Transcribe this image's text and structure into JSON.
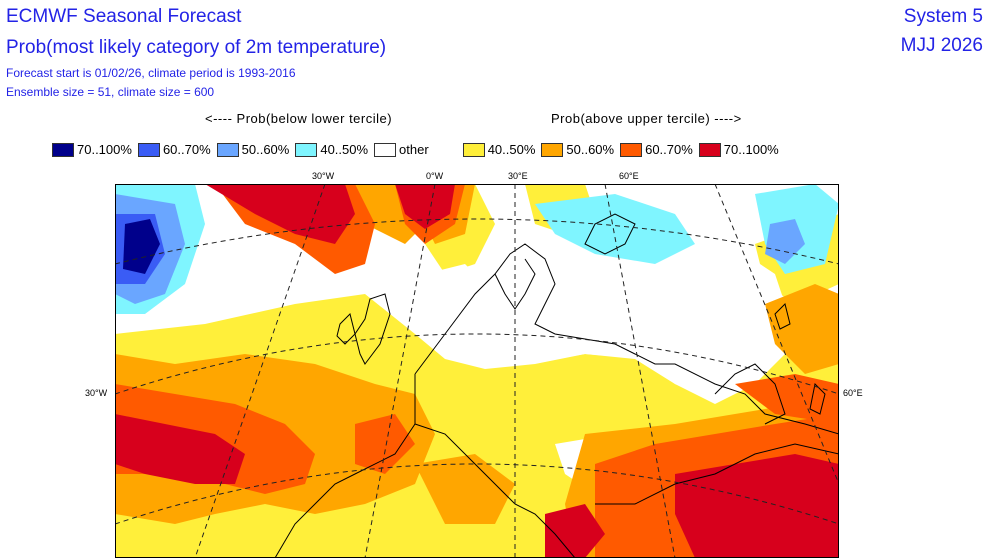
{
  "title": {
    "line1": "ECMWF Seasonal Forecast",
    "line2": "Prob(most likely category of 2m temperature)",
    "line3": "Forecast start is 01/02/26, climate period is 1993-2016",
    "line4": "Ensemble size = 51, climate size = 600"
  },
  "system": "System 5",
  "period": "MJJ 2026",
  "legend_headers": {
    "below": "<---- Prob(below lower tercile)",
    "above": "Prob(above upper tercile) ---->"
  },
  "legend": [
    {
      "label": "70..100%",
      "color": "#00008b"
    },
    {
      "label": "60..70%",
      "color": "#3a5cf5"
    },
    {
      "label": "50..60%",
      "color": "#6aa6ff"
    },
    {
      "label": "40..50%",
      "color": "#7ff5ff"
    },
    {
      "label": "other",
      "color": "#ffffff"
    },
    {
      "label": "40..50%",
      "color": "#ffef3a"
    },
    {
      "label": "50..60%",
      "color": "#ffa600"
    },
    {
      "label": "60..70%",
      "color": "#ff5a00"
    },
    {
      "label": "70..100%",
      "color": "#d7001c"
    }
  ],
  "map_labels": {
    "lon_30w_top": "30°W",
    "lon_0w_top": "0°W",
    "lon_30e_top": "30°E",
    "lon_60e_top": "60°E",
    "lat_30w_left": "30°W",
    "lat_60e_right": "60°E"
  }
}
